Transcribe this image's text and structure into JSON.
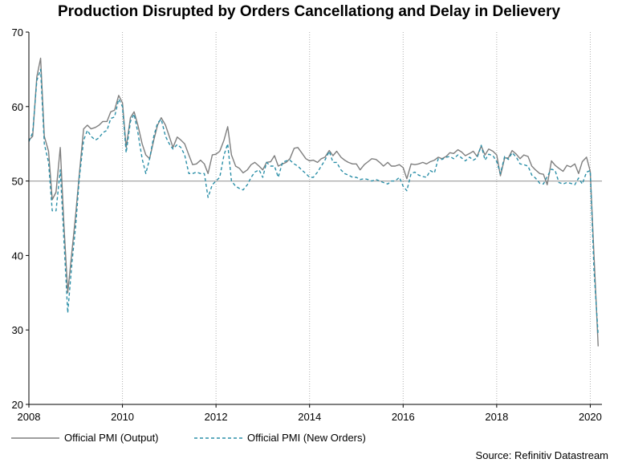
{
  "chart_data": {
    "type": "line",
    "title": "Production Disrupted by Orders Cancellationg and Delay in Delievery",
    "xlabel": "",
    "ylabel": "",
    "xlim": [
      2008,
      2020.25
    ],
    "ylim": [
      20,
      70
    ],
    "x_ticks": [
      "2008",
      "2010",
      "2012",
      "2014",
      "2016",
      "2018",
      "2020"
    ],
    "y_ticks": [
      "20",
      "30",
      "40",
      "50",
      "60",
      "70"
    ],
    "reference_line": 50,
    "grid": "vertical dotted",
    "legend_position": "bottom-left",
    "source": "Source: Refinitiv Datastream",
    "colors": {
      "output": "#7f7f7f",
      "new_orders": "#2b8fa8",
      "reference": "#a6a6a6"
    },
    "series": [
      {
        "name": "Official PMI (Output)",
        "style": "solid",
        "points": [
          [
            2008.0,
            55.5
          ],
          [
            2008.08,
            56.0
          ],
          [
            2008.17,
            64.0
          ],
          [
            2008.25,
            66.5
          ],
          [
            2008.33,
            56.0
          ],
          [
            2008.42,
            54.0
          ],
          [
            2008.5,
            47.5
          ],
          [
            2008.58,
            48.5
          ],
          [
            2008.67,
            54.5
          ],
          [
            2008.75,
            44.0
          ],
          [
            2008.83,
            35.0
          ],
          [
            2008.92,
            40.5
          ],
          [
            2009.0,
            45.5
          ],
          [
            2009.08,
            51.0
          ],
          [
            2009.17,
            57.0
          ],
          [
            2009.25,
            57.5
          ],
          [
            2009.33,
            57.0
          ],
          [
            2009.42,
            57.2
          ],
          [
            2009.5,
            57.5
          ],
          [
            2009.58,
            58.0
          ],
          [
            2009.67,
            58.0
          ],
          [
            2009.75,
            59.3
          ],
          [
            2009.83,
            59.5
          ],
          [
            2009.92,
            61.5
          ],
          [
            2010.0,
            60.5
          ],
          [
            2010.08,
            54.5
          ],
          [
            2010.17,
            58.5
          ],
          [
            2010.25,
            59.3
          ],
          [
            2010.33,
            57.5
          ],
          [
            2010.42,
            55.0
          ],
          [
            2010.5,
            53.5
          ],
          [
            2010.58,
            53.0
          ],
          [
            2010.67,
            55.5
          ],
          [
            2010.75,
            57.5
          ],
          [
            2010.83,
            58.5
          ],
          [
            2010.92,
            57.5
          ],
          [
            2011.0,
            56.0
          ],
          [
            2011.08,
            54.5
          ],
          [
            2011.17,
            55.9
          ],
          [
            2011.25,
            55.5
          ],
          [
            2011.33,
            55.0
          ],
          [
            2011.42,
            53.5
          ],
          [
            2011.5,
            52.2
          ],
          [
            2011.58,
            52.3
          ],
          [
            2011.67,
            52.8
          ],
          [
            2011.75,
            52.3
          ],
          [
            2011.83,
            51.0
          ],
          [
            2011.92,
            53.5
          ],
          [
            2012.0,
            53.6
          ],
          [
            2012.08,
            54.0
          ],
          [
            2012.17,
            55.5
          ],
          [
            2012.25,
            57.3
          ],
          [
            2012.33,
            53.5
          ],
          [
            2012.42,
            52.0
          ],
          [
            2012.5,
            51.7
          ],
          [
            2012.58,
            51.1
          ],
          [
            2012.67,
            51.5
          ],
          [
            2012.75,
            52.2
          ],
          [
            2012.83,
            52.5
          ],
          [
            2012.92,
            52.0
          ],
          [
            2013.0,
            51.5
          ],
          [
            2013.08,
            52.5
          ],
          [
            2013.17,
            52.6
          ],
          [
            2013.25,
            53.4
          ],
          [
            2013.33,
            52.0
          ],
          [
            2013.42,
            52.3
          ],
          [
            2013.5,
            52.5
          ],
          [
            2013.58,
            53.0
          ],
          [
            2013.67,
            54.4
          ],
          [
            2013.75,
            54.5
          ],
          [
            2013.83,
            53.8
          ],
          [
            2013.92,
            53.0
          ],
          [
            2014.0,
            52.7
          ],
          [
            2014.08,
            52.8
          ],
          [
            2014.17,
            52.5
          ],
          [
            2014.25,
            53.0
          ],
          [
            2014.33,
            53.2
          ],
          [
            2014.42,
            54.1
          ],
          [
            2014.5,
            53.4
          ],
          [
            2014.58,
            54.0
          ],
          [
            2014.67,
            53.2
          ],
          [
            2014.75,
            52.8
          ],
          [
            2014.83,
            52.5
          ],
          [
            2014.92,
            52.3
          ],
          [
            2015.0,
            52.3
          ],
          [
            2015.08,
            51.5
          ],
          [
            2015.17,
            52.2
          ],
          [
            2015.25,
            52.6
          ],
          [
            2015.33,
            53.0
          ],
          [
            2015.42,
            52.9
          ],
          [
            2015.5,
            52.5
          ],
          [
            2015.58,
            52.0
          ],
          [
            2015.67,
            52.5
          ],
          [
            2015.75,
            52.0
          ],
          [
            2015.83,
            52.0
          ],
          [
            2015.92,
            52.2
          ],
          [
            2016.0,
            51.8
          ],
          [
            2016.08,
            50.3
          ],
          [
            2016.17,
            52.3
          ],
          [
            2016.25,
            52.2
          ],
          [
            2016.33,
            52.3
          ],
          [
            2016.42,
            52.5
          ],
          [
            2016.5,
            52.3
          ],
          [
            2016.58,
            52.6
          ],
          [
            2016.67,
            52.8
          ],
          [
            2016.75,
            53.2
          ],
          [
            2016.83,
            53.0
          ],
          [
            2016.92,
            53.3
          ],
          [
            2017.0,
            53.8
          ],
          [
            2017.08,
            53.7
          ],
          [
            2017.17,
            54.2
          ],
          [
            2017.25,
            53.9
          ],
          [
            2017.33,
            53.4
          ],
          [
            2017.42,
            53.7
          ],
          [
            2017.5,
            54.0
          ],
          [
            2017.58,
            53.3
          ],
          [
            2017.67,
            54.7
          ],
          [
            2017.75,
            53.5
          ],
          [
            2017.83,
            54.3
          ],
          [
            2017.92,
            54.0
          ],
          [
            2018.0,
            53.5
          ],
          [
            2018.08,
            50.7
          ],
          [
            2018.17,
            53.1
          ],
          [
            2018.25,
            53.1
          ],
          [
            2018.33,
            54.1
          ],
          [
            2018.42,
            53.6
          ],
          [
            2018.5,
            53.0
          ],
          [
            2018.58,
            53.5
          ],
          [
            2018.67,
            53.3
          ],
          [
            2018.75,
            52.0
          ],
          [
            2018.83,
            51.5
          ],
          [
            2018.92,
            51.0
          ],
          [
            2019.0,
            50.9
          ],
          [
            2019.08,
            49.5
          ],
          [
            2019.17,
            52.7
          ],
          [
            2019.25,
            52.1
          ],
          [
            2019.33,
            51.7
          ],
          [
            2019.42,
            51.3
          ],
          [
            2019.5,
            52.1
          ],
          [
            2019.58,
            51.9
          ],
          [
            2019.67,
            52.3
          ],
          [
            2019.75,
            51.0
          ],
          [
            2019.83,
            52.6
          ],
          [
            2019.92,
            53.2
          ],
          [
            2020.0,
            51.3
          ],
          [
            2020.08,
            40.0
          ],
          [
            2020.17,
            27.8
          ]
        ]
      },
      {
        "name": "Official PMI (New Orders)",
        "style": "dashed",
        "points": [
          [
            2008.0,
            55.3
          ],
          [
            2008.08,
            56.5
          ],
          [
            2008.17,
            63.5
          ],
          [
            2008.25,
            65.0
          ],
          [
            2008.33,
            55.0
          ],
          [
            2008.42,
            52.5
          ],
          [
            2008.5,
            46.0
          ],
          [
            2008.58,
            46.0
          ],
          [
            2008.67,
            51.5
          ],
          [
            2008.75,
            42.0
          ],
          [
            2008.83,
            32.3
          ],
          [
            2008.92,
            39.0
          ],
          [
            2009.0,
            44.0
          ],
          [
            2009.08,
            50.5
          ],
          [
            2009.17,
            55.5
          ],
          [
            2009.25,
            56.8
          ],
          [
            2009.33,
            56.0
          ],
          [
            2009.42,
            55.5
          ],
          [
            2009.5,
            55.8
          ],
          [
            2009.58,
            56.5
          ],
          [
            2009.67,
            56.8
          ],
          [
            2009.75,
            58.4
          ],
          [
            2009.83,
            58.6
          ],
          [
            2009.92,
            61.0
          ],
          [
            2010.0,
            60.0
          ],
          [
            2010.08,
            53.8
          ],
          [
            2010.17,
            58.0
          ],
          [
            2010.25,
            59.0
          ],
          [
            2010.33,
            56.5
          ],
          [
            2010.42,
            53.0
          ],
          [
            2010.5,
            51.0
          ],
          [
            2010.58,
            53.0
          ],
          [
            2010.67,
            56.0
          ],
          [
            2010.75,
            57.8
          ],
          [
            2010.83,
            58.3
          ],
          [
            2010.92,
            56.0
          ],
          [
            2011.0,
            55.0
          ],
          [
            2011.08,
            54.3
          ],
          [
            2011.17,
            54.9
          ],
          [
            2011.25,
            54.5
          ],
          [
            2011.33,
            53.5
          ],
          [
            2011.42,
            51.0
          ],
          [
            2011.5,
            51.0
          ],
          [
            2011.58,
            51.2
          ],
          [
            2011.67,
            51.0
          ],
          [
            2011.75,
            51.0
          ],
          [
            2011.83,
            47.8
          ],
          [
            2011.92,
            49.5
          ],
          [
            2012.0,
            50.0
          ],
          [
            2012.08,
            50.5
          ],
          [
            2012.17,
            53.5
          ],
          [
            2012.25,
            55.0
          ],
          [
            2012.33,
            50.0
          ],
          [
            2012.42,
            49.3
          ],
          [
            2012.5,
            49.0
          ],
          [
            2012.58,
            48.8
          ],
          [
            2012.67,
            49.5
          ],
          [
            2012.75,
            50.5
          ],
          [
            2012.83,
            51.2
          ],
          [
            2012.92,
            51.5
          ],
          [
            2013.0,
            50.5
          ],
          [
            2013.08,
            52.5
          ],
          [
            2013.17,
            52.0
          ],
          [
            2013.25,
            52.0
          ],
          [
            2013.33,
            50.5
          ],
          [
            2013.42,
            52.5
          ],
          [
            2013.5,
            52.7
          ],
          [
            2013.58,
            52.8
          ],
          [
            2013.67,
            52.3
          ],
          [
            2013.75,
            52.0
          ],
          [
            2013.83,
            51.5
          ],
          [
            2013.92,
            51.0
          ],
          [
            2014.0,
            50.5
          ],
          [
            2014.08,
            50.5
          ],
          [
            2014.17,
            51.2
          ],
          [
            2014.25,
            52.0
          ],
          [
            2014.33,
            52.8
          ],
          [
            2014.42,
            54.0
          ],
          [
            2014.5,
            52.5
          ],
          [
            2014.58,
            52.5
          ],
          [
            2014.67,
            51.5
          ],
          [
            2014.75,
            51.0
          ],
          [
            2014.83,
            50.8
          ],
          [
            2014.92,
            50.5
          ],
          [
            2015.0,
            50.5
          ],
          [
            2015.08,
            50.2
          ],
          [
            2015.17,
            50.3
          ],
          [
            2015.25,
            50.2
          ],
          [
            2015.33,
            50.0
          ],
          [
            2015.42,
            50.2
          ],
          [
            2015.5,
            50.0
          ],
          [
            2015.58,
            49.8
          ],
          [
            2015.67,
            49.6
          ],
          [
            2015.75,
            50.0
          ],
          [
            2015.83,
            50.0
          ],
          [
            2015.92,
            50.5
          ],
          [
            2016.0,
            49.3
          ],
          [
            2016.08,
            48.7
          ],
          [
            2016.17,
            51.0
          ],
          [
            2016.25,
            51.2
          ],
          [
            2016.33,
            50.8
          ],
          [
            2016.42,
            50.6
          ],
          [
            2016.5,
            50.5
          ],
          [
            2016.58,
            51.4
          ],
          [
            2016.67,
            51.1
          ],
          [
            2016.75,
            53.0
          ],
          [
            2016.83,
            52.9
          ],
          [
            2016.92,
            53.2
          ],
          [
            2017.0,
            53.3
          ],
          [
            2017.08,
            53.0
          ],
          [
            2017.17,
            53.5
          ],
          [
            2017.25,
            53.1
          ],
          [
            2017.33,
            52.7
          ],
          [
            2017.42,
            53.2
          ],
          [
            2017.5,
            52.8
          ],
          [
            2017.58,
            53.1
          ],
          [
            2017.67,
            54.8
          ],
          [
            2017.75,
            52.8
          ],
          [
            2017.83,
            53.6
          ],
          [
            2017.92,
            53.4
          ],
          [
            2018.0,
            52.6
          ],
          [
            2018.08,
            51.0
          ],
          [
            2018.17,
            53.3
          ],
          [
            2018.25,
            52.9
          ],
          [
            2018.33,
            53.8
          ],
          [
            2018.42,
            53.2
          ],
          [
            2018.5,
            52.3
          ],
          [
            2018.58,
            52.2
          ],
          [
            2018.67,
            52.0
          ],
          [
            2018.75,
            50.8
          ],
          [
            2018.83,
            50.4
          ],
          [
            2018.92,
            49.7
          ],
          [
            2019.0,
            49.6
          ],
          [
            2019.08,
            50.6
          ],
          [
            2019.17,
            51.6
          ],
          [
            2019.25,
            51.4
          ],
          [
            2019.33,
            49.8
          ],
          [
            2019.42,
            49.6
          ],
          [
            2019.5,
            49.8
          ],
          [
            2019.58,
            49.7
          ],
          [
            2019.67,
            49.5
          ],
          [
            2019.75,
            50.4
          ],
          [
            2019.83,
            49.6
          ],
          [
            2019.92,
            51.2
          ],
          [
            2020.0,
            51.4
          ],
          [
            2020.08,
            38.0
          ],
          [
            2020.17,
            29.3
          ]
        ]
      }
    ]
  }
}
